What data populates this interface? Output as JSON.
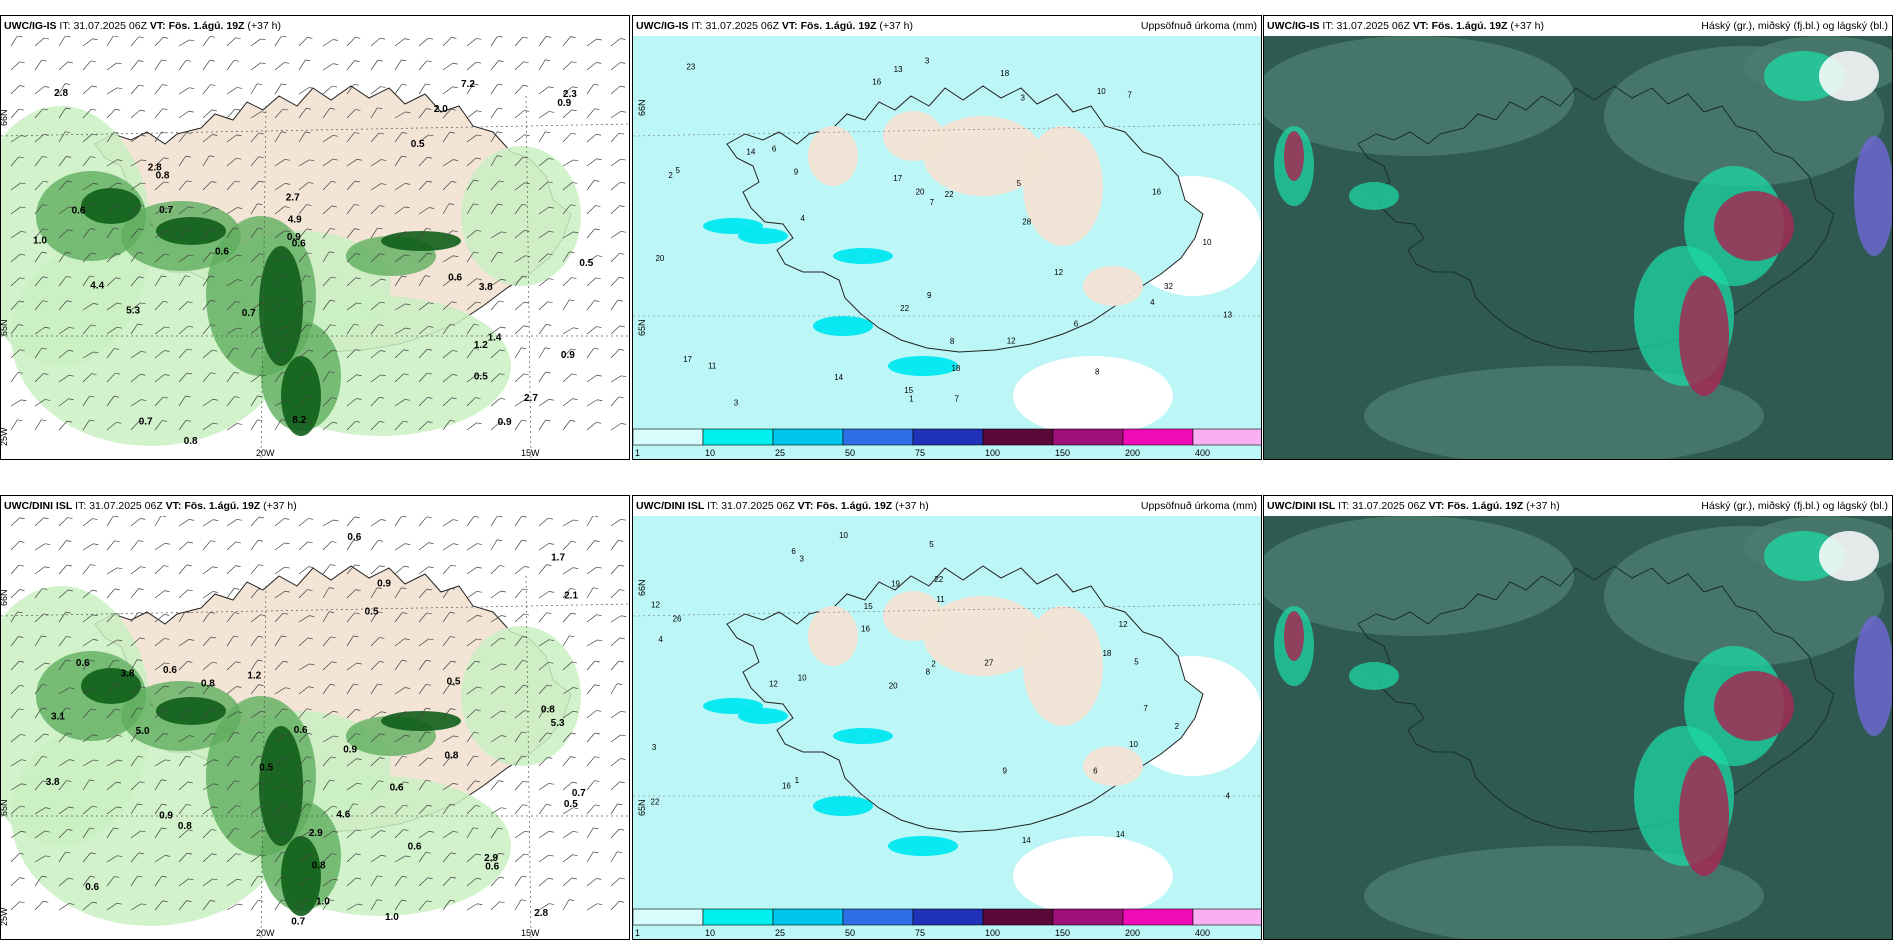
{
  "colors": {
    "land": "#f3e4d6",
    "sea_white": "#ffffff",
    "green_light": "#c9f0c2",
    "green_mid": "#5fae5f",
    "green_dark": "#0f5e1a",
    "precip_light": "#bdf6f6",
    "cloud_base": "#2f5a52",
    "cloud_mid": "#4c7d70",
    "cloud_cyan": "#1dd8a6",
    "cloud_red": "#a22a55"
  },
  "rows": [
    {
      "model": "UWC/IG-IS",
      "panels": [
        {
          "kind": "wind",
          "it_label": "IT:",
          "it_value": "31.07.2025 06Z",
          "vt_label": "VT:",
          "vt_value": "Fös. 1.ágú. 19Z",
          "lead": "(+37 h)",
          "right_title": "",
          "grid_labels": [
            "66N",
            "65N",
            "25W",
            "20W",
            "15W"
          ],
          "values": [
            "0.5",
            "0.9",
            "0.8",
            "2.3",
            "3.8",
            "0.7",
            "7.2",
            "8.2",
            "1.0",
            "0.6",
            "0.5",
            "2.7",
            "0.7",
            "4.4",
            "0.7",
            "0.9",
            "0.6",
            "0.8",
            "5.3",
            "2.8",
            "2.7",
            "2.0",
            "0.6",
            "0.6",
            "1.4",
            "0.9",
            "4.9",
            "1.2",
            "2.8",
            "0.9",
            "0.5"
          ]
        },
        {
          "kind": "precip",
          "it_label": "IT:",
          "it_value": "31.07.2025 06Z",
          "vt_label": "VT:",
          "vt_value": "Fös. 1.ágú. 19Z",
          "lead": "(+37 h)",
          "right_title": "Uppsöfnuð úrkoma (mm)",
          "grid_labels": [
            "66N",
            "65N"
          ],
          "values": [
            "8",
            "7",
            "3",
            "4",
            "5",
            "6",
            "10",
            "3",
            "18",
            "16",
            "20",
            "13",
            "22",
            "14",
            "12",
            "9",
            "17",
            "23",
            "14",
            "20",
            "17",
            "18",
            "22",
            "11",
            "28",
            "32",
            "15",
            "16",
            "9",
            "8",
            "7",
            "12",
            "13",
            "10",
            "5",
            "6",
            "7",
            "4",
            "2",
            "1",
            "3"
          ],
          "colorbar": {
            "ticks": [
              "1",
              "10",
              "25",
              "50",
              "75",
              "100",
              "150",
              "200",
              "400"
            ],
            "colors": [
              "#d8fbfb",
              "#00f0f0",
              "#00c6ee",
              "#2e6fe6",
              "#2033b8",
              "#5a0838",
              "#a0107a",
              "#f00ab8",
              "#f8b0f2"
            ]
          }
        },
        {
          "kind": "cloud",
          "it_label": "IT:",
          "it_value": "31.07.2025 06Z",
          "vt_label": "VT:",
          "vt_value": "Fös. 1.ágú. 19Z",
          "lead": "(+37 h)",
          "right_title": "Háský (gr.), miðský (fj.bl.) og lágský (bl.)"
        }
      ]
    },
    {
      "model": "UWC/DINI ISL",
      "panels": [
        {
          "kind": "wind",
          "it_label": "IT:",
          "it_value": "31.07.2025 06Z",
          "vt_label": "VT:",
          "vt_value": "Fös. 1.ágú. 19Z",
          "lead": "(+37 h)",
          "right_title": "",
          "grid_labels": [
            "66N",
            "65N",
            "25W",
            "20W",
            "15W"
          ],
          "values": [
            "3.8",
            "0.8",
            "0.6",
            "0.6",
            "0.7",
            "0.5",
            "0.6",
            "2.8",
            "0.6",
            "3.8",
            "4.6",
            "5.0",
            "0.5",
            "0.8",
            "0.9",
            "0.9",
            "0.6",
            "5.3",
            "2.9",
            "0.6",
            "0.9",
            "2.9",
            "1.7",
            "1.0",
            "0.5",
            "0.6",
            "0.8",
            "1.0",
            "0.6",
            "0.7",
            "0.8",
            "3.1",
            "2.1",
            "0.8",
            "1.2",
            "0.5"
          ]
        },
        {
          "kind": "precip",
          "it_label": "IT:",
          "it_value": "31.07.2025 06Z",
          "vt_label": "VT:",
          "vt_value": "Fös. 1.ágú. 19Z",
          "lead": "(+37 h)",
          "right_title": "Uppsöfnuð úrkoma (mm)",
          "grid_labels": [
            "66N",
            "65N"
          ],
          "values": [
            "4",
            "3",
            "2",
            "5",
            "6",
            "14",
            "12",
            "26",
            "22",
            "10",
            "19",
            "20",
            "14",
            "16",
            "15",
            "18",
            "12",
            "12",
            "27",
            "22",
            "10",
            "16",
            "9",
            "7",
            "8",
            "11",
            "10",
            "6",
            "5",
            "4",
            "3",
            "2",
            "1"
          ],
          "colorbar": {
            "ticks": [
              "1",
              "10",
              "25",
              "50",
              "75",
              "100",
              "150",
              "200",
              "400"
            ],
            "colors": [
              "#d8fbfb",
              "#00f0f0",
              "#00c6ee",
              "#2e6fe6",
              "#2033b8",
              "#5a0838",
              "#a0107a",
              "#f00ab8",
              "#f8b0f2"
            ]
          }
        },
        {
          "kind": "cloud",
          "it_label": "IT:",
          "it_value": "31.07.2025 06Z",
          "vt_label": "VT:",
          "vt_value": "Fös. 1.ágú. 19Z",
          "lead": "(+37 h)",
          "right_title": "Háský (gr.), miðský (fj.bl.) og lágský (bl.)"
        }
      ]
    }
  ]
}
